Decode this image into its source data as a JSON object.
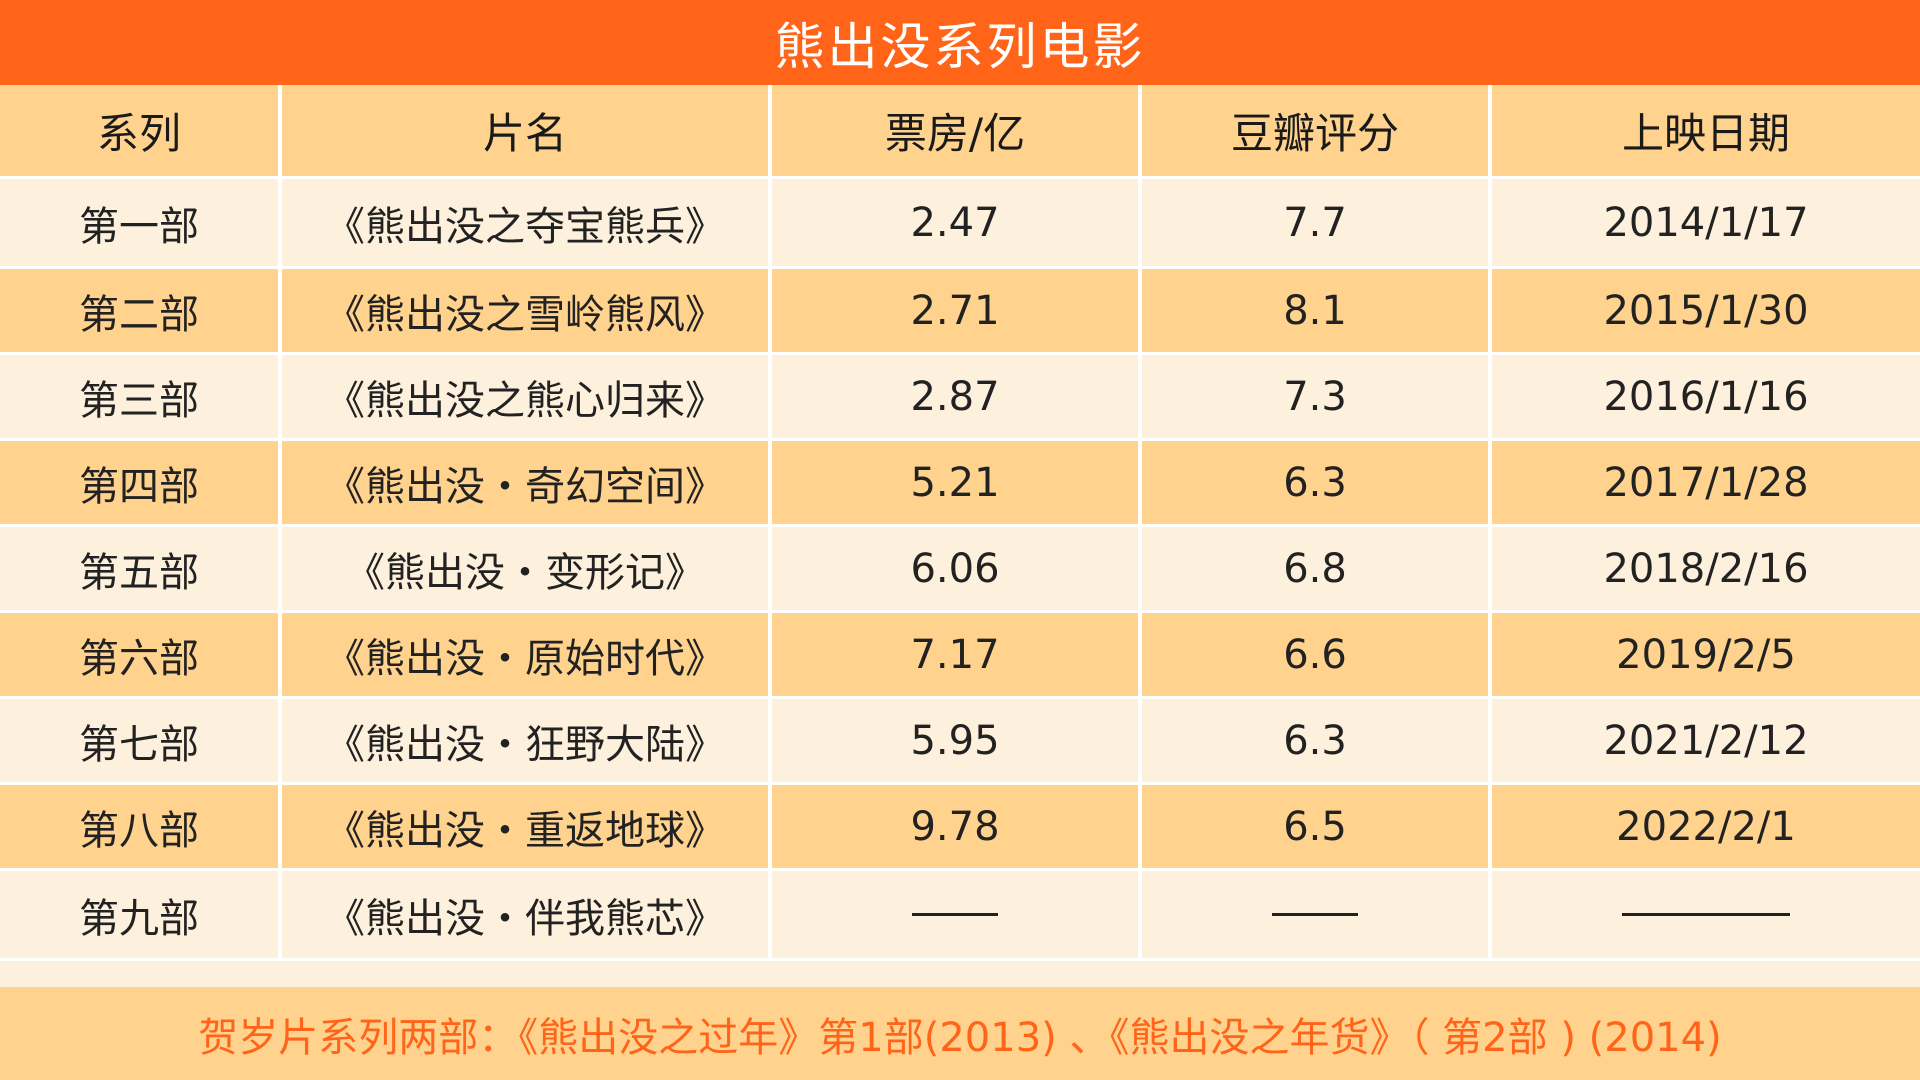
{
  "title": "熊出没系列电影",
  "chart_data": {
    "type": "table",
    "title": "熊出没系列电影",
    "columns": [
      "系列",
      "片名",
      "票房/亿",
      "豆瓣评分",
      "上映日期"
    ],
    "rows": [
      {
        "series": "第一部",
        "name": "《熊出没之夺宝熊兵》",
        "box_office": "2.47",
        "douban": "7.7",
        "date": "2014/1/17"
      },
      {
        "series": "第二部",
        "name": "《熊出没之雪岭熊风》",
        "box_office": "2.71",
        "douban": "8.1",
        "date": "2015/1/30"
      },
      {
        "series": "第三部",
        "name": "《熊出没之熊心归来》",
        "box_office": "2.87",
        "douban": "7.3",
        "date": "2016/1/16"
      },
      {
        "series": "第四部",
        "name": "《熊出没・奇幻空间》",
        "box_office": "5.21",
        "douban": "6.3",
        "date": "2017/1/28"
      },
      {
        "series": "第五部",
        "name": "《熊出没・变形记》",
        "box_office": "6.06",
        "douban": "6.8",
        "date": "2018/2/16"
      },
      {
        "series": "第六部",
        "name": "《熊出没・原始时代》",
        "box_office": "7.17",
        "douban": "6.6",
        "date": "2019/2/5"
      },
      {
        "series": "第七部",
        "name": "《熊出没・狂野大陆》",
        "box_office": "5.95",
        "douban": "6.3",
        "date": "2021/2/12"
      },
      {
        "series": "第八部",
        "name": "《熊出没・重返地球》",
        "box_office": "9.78",
        "douban": "6.5",
        "date": "2022/2/1"
      },
      {
        "series": "第九部",
        "name": "《熊出没・伴我熊芯》",
        "box_office": "",
        "douban": "",
        "date": ""
      }
    ],
    "footnote": "贺岁片系列两部：《熊出没之过年》第1部(2013) 、《熊出没之年货》（ 第2部 ) (2014)"
  },
  "colors": {
    "accent": "#FF6419",
    "header_bg": "#FFD28E",
    "light_row_bg": "#FDF0DC"
  }
}
